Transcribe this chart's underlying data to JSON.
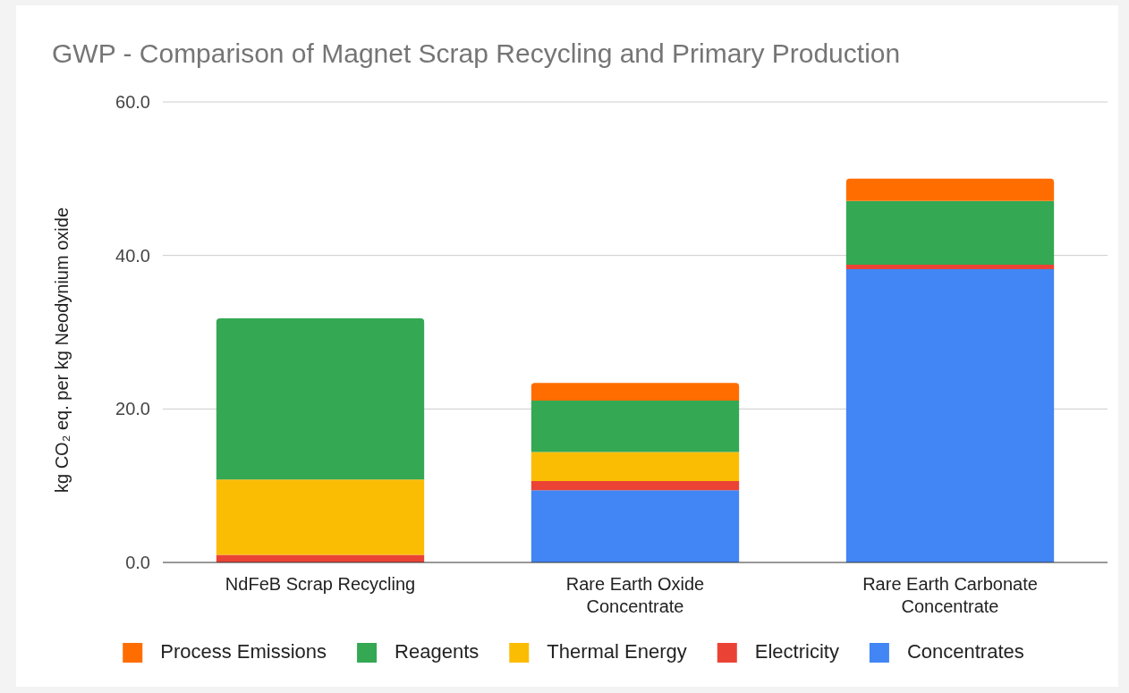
{
  "chart_data": {
    "type": "bar",
    "title": "GWP - Comparison of Magnet Scrap Recycling and Primary Production",
    "ylabel": "kg CO₂  eq. per kg Neodynium oxide",
    "categories": [
      "NdFeB Scrap Recycling",
      "Rare Earth Oxide Concentrate",
      "Rare Earth Carbonate Concentrate"
    ],
    "stacked": true,
    "series": [
      {
        "name": "Concentrates",
        "color": "#4285f4",
        "values": [
          0,
          9.4,
          38.2
        ]
      },
      {
        "name": "Electricity",
        "color": "#ea4335",
        "values": [
          1.0,
          1.2,
          0.6
        ]
      },
      {
        "name": "Thermal Energy",
        "color": "#fbbc04",
        "values": [
          9.8,
          3.8,
          0
        ]
      },
      {
        "name": "Reagents",
        "color": "#34a853",
        "values": [
          21.0,
          6.7,
          8.3
        ]
      },
      {
        "name": "Process Emissions",
        "color": "#ff6d01",
        "values": [
          0,
          2.3,
          2.9
        ]
      }
    ],
    "ylim": [
      0,
      60
    ],
    "yticks": [
      {
        "value": 0,
        "label": "0.0"
      },
      {
        "value": 20,
        "label": "20.0"
      },
      {
        "value": 40,
        "label": "40.0"
      },
      {
        "value": 60,
        "label": "60.0"
      }
    ],
    "grid": "y",
    "legend": "bottom"
  }
}
